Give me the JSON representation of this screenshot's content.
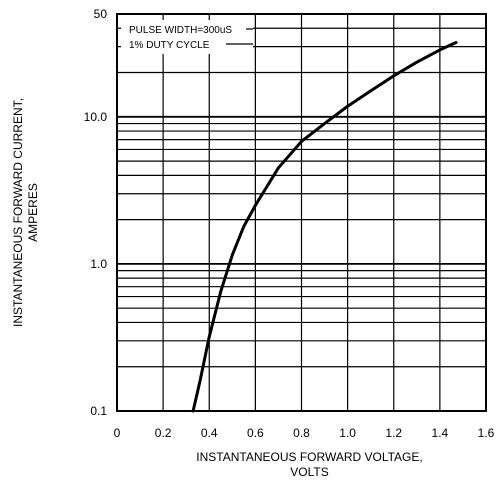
{
  "chart_data": {
    "type": "line",
    "xlabel_line1": "INSTANTANEOUS FORWARD VOLTAGE,",
    "xlabel_line2": "VOLTS",
    "ylabel_line1": "INSTANTANEOUS FORWARD CURRENT,",
    "ylabel_line2": "AMPERES",
    "xlim": [
      0,
      1.6
    ],
    "ylim": [
      0.1,
      50
    ],
    "y_scale": "log",
    "x_ticks": [
      "0",
      "0.2",
      "0.4",
      "0.6",
      "0.8",
      "1.0",
      "1.2",
      "1.4",
      "1.6"
    ],
    "y_ticks": [
      {
        "value": 0.1,
        "label": "0.1"
      },
      {
        "value": 1.0,
        "label": "1.0"
      },
      {
        "value": 10.0,
        "label": "10.0"
      },
      {
        "value": 50,
        "label": "50"
      }
    ],
    "grid": true,
    "annotations": [
      "PULSE WIDTH=300uS",
      "1% DUTY CYCLE"
    ],
    "series": [
      {
        "x": [
          0.33,
          0.36,
          0.4,
          0.45,
          0.5,
          0.55,
          0.6,
          0.7,
          0.8,
          0.9,
          1.0,
          1.1,
          1.2,
          1.3,
          1.4,
          1.47
        ],
        "y": [
          0.1,
          0.16,
          0.32,
          0.65,
          1.15,
          1.8,
          2.5,
          4.5,
          6.8,
          9.0,
          11.8,
          15.0,
          19.0,
          23.5,
          28.5,
          32.0
        ]
      }
    ]
  }
}
